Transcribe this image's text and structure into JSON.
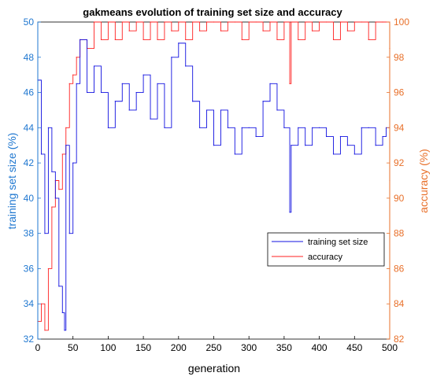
{
  "chart_data": {
    "type": "line",
    "title": "gakmeans evolution of training set size and accuracy",
    "xlabel": "generation",
    "ylabel_left": "training set size (%)",
    "ylabel_right": "accuracy (%)",
    "xlim": [
      0,
      500
    ],
    "ylim_left": [
      32,
      50
    ],
    "ylim_right": [
      82,
      100
    ],
    "x_ticks": [
      "0",
      "50",
      "100",
      "150",
      "200",
      "250",
      "300",
      "350",
      "400",
      "450",
      "500"
    ],
    "y_left_ticks": [
      "32",
      "34",
      "36",
      "38",
      "40",
      "42",
      "44",
      "46",
      "48",
      "50"
    ],
    "y_right_ticks": [
      "82",
      "84",
      "86",
      "88",
      "90",
      "92",
      "94",
      "96",
      "98",
      "100"
    ],
    "grid": false,
    "legend_position": "right",
    "colors": {
      "left_axis": "#1f77d0",
      "right_axis": "#e8702a",
      "training": "#1010e0",
      "accuracy": "#ff2020"
    },
    "series": [
      {
        "name": "training set size",
        "axis": "left",
        "x": [
          0,
          5,
          10,
          15,
          20,
          25,
          30,
          35,
          38,
          40,
          45,
          50,
          55,
          60,
          70,
          80,
          90,
          100,
          110,
          120,
          130,
          140,
          150,
          160,
          170,
          180,
          190,
          200,
          210,
          220,
          230,
          240,
          250,
          260,
          270,
          280,
          290,
          300,
          310,
          320,
          330,
          340,
          350,
          358,
          360,
          370,
          380,
          390,
          400,
          410,
          420,
          430,
          440,
          450,
          460,
          470,
          480,
          490,
          495,
          500
        ],
        "values": [
          46.7,
          42.5,
          38.0,
          44.0,
          41.5,
          40.0,
          35.0,
          33.5,
          32.5,
          43.0,
          38.0,
          42.0,
          46.5,
          49.0,
          46.0,
          47.5,
          46.0,
          44.0,
          45.5,
          46.5,
          45.0,
          46.0,
          47.0,
          44.5,
          46.5,
          44.0,
          48.0,
          48.8,
          47.5,
          45.5,
          44.0,
          45.0,
          43.0,
          45.0,
          44.0,
          42.5,
          44.0,
          44.0,
          43.5,
          45.5,
          46.5,
          45.0,
          44.0,
          39.2,
          43.0,
          44.0,
          43.0,
          44.0,
          44.0,
          43.5,
          42.5,
          43.5,
          43.0,
          42.5,
          44.0,
          44.0,
          43.0,
          43.5,
          44.0,
          41.0
        ]
      },
      {
        "name": "accuracy",
        "axis": "right",
        "x": [
          0,
          5,
          10,
          15,
          20,
          25,
          30,
          35,
          40,
          45,
          50,
          55,
          60,
          70,
          80,
          90,
          100,
          110,
          120,
          130,
          140,
          150,
          160,
          170,
          180,
          190,
          200,
          210,
          220,
          230,
          240,
          250,
          260,
          270,
          280,
          290,
          300,
          310,
          320,
          330,
          340,
          350,
          358,
          360,
          370,
          380,
          390,
          400,
          410,
          420,
          430,
          440,
          450,
          460,
          470,
          480,
          490,
          500
        ],
        "values": [
          83.0,
          84.0,
          82.5,
          86.0,
          89.5,
          91.0,
          90.5,
          92.5,
          94.0,
          96.5,
          97.0,
          98.0,
          99.0,
          98.5,
          100.0,
          99.0,
          100.0,
          99.0,
          100.0,
          99.5,
          100.0,
          99.0,
          100.0,
          99.0,
          100.0,
          99.5,
          100.0,
          99.0,
          100.0,
          99.5,
          100.0,
          100.0,
          99.5,
          100.0,
          100.0,
          99.0,
          100.0,
          100.0,
          99.5,
          100.0,
          99.0,
          100.0,
          96.5,
          100.0,
          99.0,
          100.0,
          99.5,
          100.0,
          100.0,
          99.0,
          100.0,
          99.5,
          100.0,
          100.0,
          99.0,
          100.0,
          100.0,
          98.5
        ]
      }
    ]
  }
}
